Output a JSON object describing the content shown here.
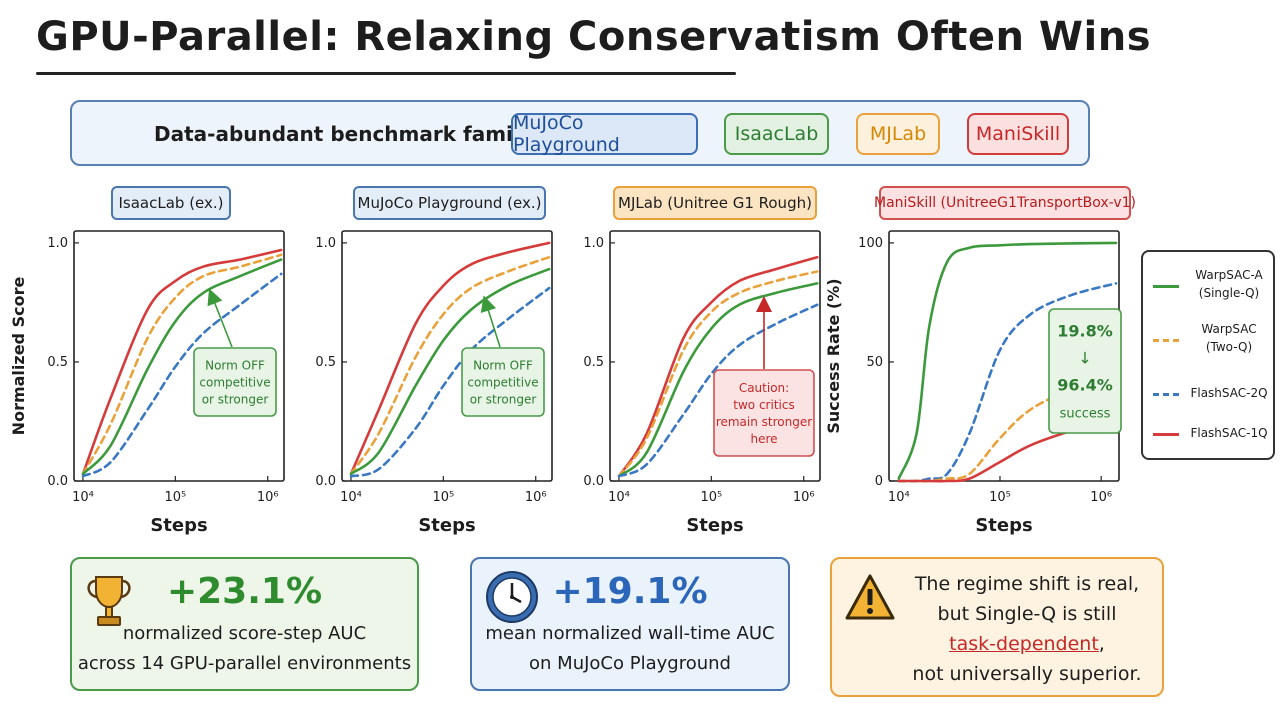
{
  "title": "GPU-Parallel: Relaxing Conservatism Often Wins",
  "benchmarks": {
    "label": "Data-abundant benchmark families:",
    "items": [
      "MuJoCo Playground",
      "IsaacLab",
      "MJLab",
      "ManiSkill"
    ]
  },
  "colors": {
    "warpsac_a": "#3c9a3c",
    "warpsac": "#e9a23b",
    "flashsac_2q": "#3a78c2",
    "flashsac_1q": "#d63b3b"
  },
  "legend": [
    {
      "line1": "WarpSAC-A",
      "line2": "(Single-Q)",
      "key": "warpsac_a",
      "style": "solid"
    },
    {
      "line1": "WarpSAC",
      "line2": "(Two-Q)",
      "key": "warpsac",
      "style": "dashed"
    },
    {
      "line1": "FlashSAC-2Q",
      "line2": "",
      "key": "flashsac_2q",
      "style": "dashed"
    },
    {
      "line1": "FlashSAC-1Q",
      "line2": "",
      "key": "flashsac_1q",
      "style": "solid"
    }
  ],
  "chart_data": [
    {
      "type": "line",
      "title": "IsaacLab (ex.)",
      "xlabel": "Steps",
      "ylabel": "Normalized Score",
      "xscale": "log",
      "xlim": [
        8000,
        1500000
      ],
      "ylim": [
        0,
        1.05
      ],
      "yticks": [
        0.0,
        0.5,
        1.0
      ],
      "xticks": [
        10000,
        100000,
        1000000
      ],
      "xtick_labels": [
        "10⁴",
        "10⁵",
        "10⁶"
      ],
      "ytick_labels": [
        "0.0",
        "0.5",
        "1.0"
      ],
      "x": [
        10000,
        20000,
        50000,
        100000,
        200000,
        500000,
        1400000
      ],
      "series": [
        {
          "name": "FlashSAC-1Q",
          "key": "flashsac_1q",
          "values": [
            0.03,
            0.35,
            0.72,
            0.84,
            0.9,
            0.93,
            0.97
          ]
        },
        {
          "name": "WarpSAC",
          "key": "warpsac",
          "values": [
            0.03,
            0.24,
            0.6,
            0.77,
            0.86,
            0.9,
            0.95
          ]
        },
        {
          "name": "WarpSAC-A",
          "key": "warpsac_a",
          "values": [
            0.03,
            0.15,
            0.47,
            0.67,
            0.79,
            0.86,
            0.93
          ]
        },
        {
          "name": "FlashSAC-2Q",
          "key": "flashsac_2q",
          "values": [
            0.02,
            0.08,
            0.3,
            0.48,
            0.62,
            0.74,
            0.87
          ]
        }
      ],
      "annotation": [
        "Norm OFF",
        "competitive",
        "or stronger"
      ]
    },
    {
      "type": "line",
      "title": "MuJoCo Playground (ex.)",
      "xlabel": "Steps",
      "ylabel": "",
      "xscale": "log",
      "xlim": [
        8000,
        1500000
      ],
      "ylim": [
        0,
        1.05
      ],
      "yticks": [
        0.0,
        0.5,
        1.0
      ],
      "xticks": [
        10000,
        100000,
        1000000
      ],
      "xtick_labels": [
        "10⁴",
        "10⁵",
        "10⁶"
      ],
      "ytick_labels": [
        "0.0",
        "0.5",
        "1.0"
      ],
      "x": [
        10000,
        20000,
        50000,
        100000,
        200000,
        500000,
        1400000
      ],
      "series": [
        {
          "name": "FlashSAC-1Q",
          "key": "flashsac_1q",
          "values": [
            0.03,
            0.3,
            0.66,
            0.82,
            0.91,
            0.96,
            1.0
          ]
        },
        {
          "name": "WarpSAC",
          "key": "warpsac",
          "values": [
            0.03,
            0.2,
            0.52,
            0.7,
            0.81,
            0.88,
            0.94
          ]
        },
        {
          "name": "WarpSAC-A",
          "key": "warpsac_a",
          "values": [
            0.03,
            0.12,
            0.4,
            0.59,
            0.72,
            0.82,
            0.89
          ]
        },
        {
          "name": "FlashSAC-2Q",
          "key": "flashsac_2q",
          "values": [
            0.02,
            0.05,
            0.22,
            0.4,
            0.55,
            0.68,
            0.81
          ]
        }
      ],
      "annotation": [
        "Norm OFF",
        "competitive",
        "or stronger"
      ]
    },
    {
      "type": "line",
      "title": "MJLab (Unitree G1 Rough)",
      "xlabel": "Steps",
      "ylabel": "",
      "xscale": "log",
      "xlim": [
        8000,
        1500000
      ],
      "ylim": [
        0,
        1.05
      ],
      "yticks": [
        0.0,
        0.5,
        1.0
      ],
      "xticks": [
        10000,
        100000,
        1000000
      ],
      "xtick_labels": [
        "10⁴",
        "10⁵",
        "10⁶"
      ],
      "ytick_labels": [
        "0.0",
        "0.5",
        "1.0"
      ],
      "x": [
        10000,
        20000,
        50000,
        100000,
        200000,
        500000,
        1400000
      ],
      "series": [
        {
          "name": "FlashSAC-1Q",
          "key": "flashsac_1q",
          "values": [
            0.02,
            0.2,
            0.6,
            0.75,
            0.84,
            0.89,
            0.94
          ]
        },
        {
          "name": "WarpSAC",
          "key": "warpsac",
          "values": [
            0.02,
            0.18,
            0.55,
            0.71,
            0.79,
            0.84,
            0.88
          ]
        },
        {
          "name": "WarpSAC-A",
          "key": "warpsac_a",
          "values": [
            0.02,
            0.12,
            0.46,
            0.64,
            0.74,
            0.79,
            0.83
          ]
        },
        {
          "name": "FlashSAC-2Q",
          "key": "flashsac_2q",
          "values": [
            0.02,
            0.07,
            0.28,
            0.45,
            0.57,
            0.66,
            0.74
          ]
        }
      ],
      "annotation": [
        "Caution:",
        "two critics",
        "remain stronger",
        "here"
      ]
    },
    {
      "type": "line",
      "title": "ManiSkill (UnitreeG1TransportBox-v1)",
      "xlabel": "Steps",
      "ylabel": "Success Rate (%)",
      "xscale": "log",
      "xlim": [
        8000,
        1500000
      ],
      "ylim": [
        0,
        105
      ],
      "yticks": [
        0,
        50,
        100
      ],
      "xticks": [
        10000,
        100000,
        1000000
      ],
      "xtick_labels": [
        "10⁴",
        "10⁵",
        "10⁶"
      ],
      "ytick_labels": [
        "0",
        "50",
        "100"
      ],
      "x": [
        10000,
        15000,
        20000,
        30000,
        50000,
        100000,
        200000,
        500000,
        1400000
      ],
      "series": [
        {
          "name": "WarpSAC-A",
          "key": "warpsac_a",
          "values": [
            1,
            20,
            65,
            92,
            98,
            99,
            99.5,
            99.8,
            100
          ]
        },
        {
          "name": "FlashSAC-2Q",
          "key": "flashsac_2q",
          "values": [
            0,
            0,
            1,
            3,
            20,
            55,
            70,
            78,
            83
          ]
        },
        {
          "name": "WarpSAC",
          "key": "warpsac",
          "values": [
            0,
            0,
            0,
            1,
            3,
            18,
            30,
            38,
            42
          ]
        },
        {
          "name": "FlashSAC-1Q",
          "key": "flashsac_1q",
          "values": [
            0,
            0,
            0,
            0,
            1,
            8,
            15,
            21,
            26
          ]
        }
      ],
      "annotation": [
        "19.8%",
        "↓",
        "96.4%",
        "success"
      ]
    }
  ],
  "cards": {
    "auc": {
      "value": "+23.1%",
      "line1": "normalized score-step AUC",
      "line2": "across 14 GPU-parallel environments"
    },
    "walltime": {
      "value": "+19.1%",
      "line1": "mean normalized wall-time AUC",
      "line2": "on MuJoCo Playground"
    },
    "warning": {
      "line1": "The regime shift is real,",
      "line2": "but Single-Q is still",
      "line3": "task-dependent",
      "line3_suffix": ",",
      "line4": "not universally superior."
    }
  }
}
